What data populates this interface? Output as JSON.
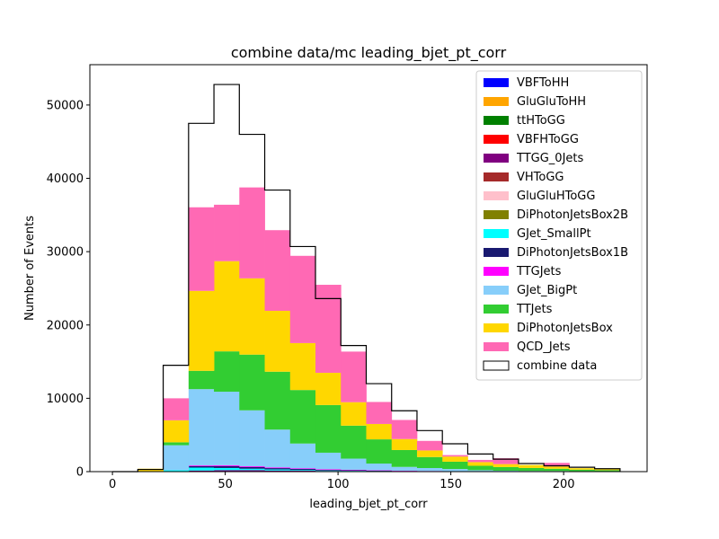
{
  "chart_data": {
    "type": "bar",
    "stacked": true,
    "title": "combine data/mc leading_bjet_pt_corr",
    "xlabel": "leading_bjet_pt_corr",
    "ylabel": "Number of Events",
    "xlim": [
      -10,
      237
    ],
    "ylim": [
      0,
      55500
    ],
    "xticks": [
      0,
      50,
      100,
      150,
      200
    ],
    "yticks": [
      0,
      10000,
      20000,
      30000,
      40000,
      50000
    ],
    "bin_edges": [
      0,
      11.25,
      22.5,
      33.75,
      45,
      56.25,
      67.5,
      78.75,
      90,
      101.25,
      112.5,
      123.75,
      135,
      146.25,
      157.5,
      168.75,
      180,
      191.25,
      202.5,
      213.75,
      225
    ],
    "legend_position": "upper right",
    "grid": false,
    "series": [
      {
        "name": "VBFToHH",
        "color": "#0000ff",
        "values": [
          0,
          0,
          0,
          0,
          0,
          0,
          0,
          0,
          0,
          0,
          0,
          0,
          0,
          0,
          0,
          0,
          0,
          0,
          0,
          0
        ]
      },
      {
        "name": "GluGluToHH",
        "color": "#ffa500",
        "values": [
          0,
          0,
          0,
          0,
          0,
          0,
          0,
          0,
          0,
          0,
          0,
          0,
          0,
          0,
          0,
          0,
          0,
          0,
          0,
          0
        ]
      },
      {
        "name": "ttHToGG",
        "color": "#008000",
        "values": [
          0,
          0,
          0,
          0,
          0,
          0,
          0,
          0,
          0,
          0,
          0,
          0,
          0,
          0,
          0,
          0,
          0,
          0,
          0,
          0
        ]
      },
      {
        "name": "VBFHToGG",
        "color": "#ff0000",
        "values": [
          0,
          0,
          0,
          0,
          0,
          0,
          0,
          0,
          0,
          0,
          0,
          0,
          0,
          0,
          0,
          0,
          0,
          0,
          0,
          0
        ]
      },
      {
        "name": "TTGG_0Jets",
        "color": "#800080",
        "values": [
          0,
          0,
          0,
          150,
          200,
          200,
          150,
          120,
          90,
          70,
          50,
          35,
          25,
          15,
          10,
          8,
          5,
          4,
          3,
          2
        ]
      },
      {
        "name": "VHToGG",
        "color": "#a52a2a",
        "values": [
          0,
          0,
          0,
          0,
          0,
          0,
          0,
          0,
          0,
          0,
          0,
          0,
          0,
          0,
          0,
          0,
          0,
          0,
          0,
          0
        ]
      },
      {
        "name": "GluGluHToGG",
        "color": "#ffc0cb",
        "values": [
          0,
          0,
          0,
          0,
          0,
          0,
          0,
          0,
          0,
          0,
          0,
          0,
          0,
          0,
          0,
          0,
          0,
          0,
          0,
          0
        ]
      },
      {
        "name": "DiPhotonJetsBox2B",
        "color": "#808000",
        "values": [
          0,
          0,
          0,
          0,
          0,
          0,
          0,
          0,
          0,
          0,
          0,
          0,
          0,
          0,
          0,
          0,
          0,
          0,
          0,
          0
        ]
      },
      {
        "name": "GJet_SmallPt",
        "color": "#00ffff",
        "values": [
          0,
          0,
          200,
          400,
          300,
          200,
          150,
          100,
          60,
          40,
          25,
          15,
          10,
          5,
          3,
          2,
          1,
          1,
          0,
          0
        ]
      },
      {
        "name": "DiPhotonJetsBox1B",
        "color": "#191970",
        "values": [
          0,
          0,
          0,
          200,
          250,
          220,
          180,
          150,
          110,
          80,
          55,
          35,
          25,
          15,
          10,
          6,
          4,
          3,
          2,
          1
        ]
      },
      {
        "name": "TTGJets",
        "color": "#ff00ff",
        "values": [
          0,
          0,
          0,
          100,
          120,
          110,
          100,
          90,
          80,
          70,
          50,
          40,
          30,
          20,
          15,
          10,
          8,
          6,
          4,
          3
        ]
      },
      {
        "name": "GJet_BigPt",
        "color": "#87cefa",
        "values": [
          0,
          0,
          3400,
          10400,
          10030,
          7630,
          5150,
          3370,
          2240,
          1510,
          920,
          520,
          400,
          300,
          160,
          100,
          80,
          80,
          60,
          50
        ]
      },
      {
        "name": "TTJets",
        "color": "#32cd32",
        "values": [
          0,
          0,
          400,
          2500,
          5500,
          7600,
          7900,
          7300,
          6500,
          4500,
          3300,
          2300,
          1500,
          1000,
          600,
          500,
          400,
          300,
          200,
          150
        ]
      },
      {
        "name": "DiPhotonJetsBox",
        "color": "#ffd700",
        "values": [
          0,
          400,
          3000,
          10900,
          12300,
          10400,
          8300,
          6400,
          4400,
          3200,
          2100,
          1500,
          900,
          700,
          500,
          400,
          400,
          300,
          200,
          150
        ]
      },
      {
        "name": "QCD_Jets",
        "color": "#ff69b4",
        "values": [
          0,
          0,
          3000,
          11400,
          7700,
          12400,
          11000,
          11900,
          12000,
          6900,
          3000,
          2600,
          1300,
          200,
          300,
          800,
          0,
          500,
          0,
          0
        ]
      }
    ],
    "data_series": {
      "name": "combine data",
      "color": "#000000",
      "values": [
        0,
        300,
        14500,
        47500,
        52800,
        46000,
        38400,
        30700,
        23600,
        17200,
        12000,
        8300,
        5600,
        3800,
        2400,
        1700,
        1100,
        800,
        600,
        400
      ]
    }
  }
}
